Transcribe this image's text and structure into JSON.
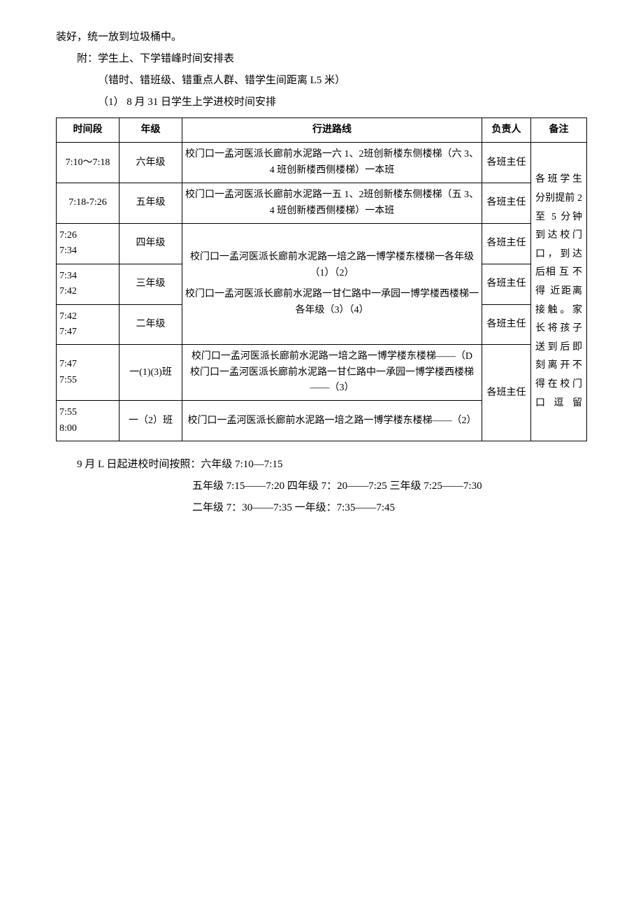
{
  "intro": {
    "line1": "装好，统一放到垃圾桶中。",
    "line2": "附：学生上、下学错峰时间安排表",
    "line3": "（错时、错班级、错重点人群、错学生间距离 L5 米）",
    "line4": "（1）  8 月 31 日学生上学进校时间安排"
  },
  "table": {
    "headers": {
      "time": "时间段",
      "grade": "年级",
      "route": "行进路线",
      "resp": "负责人",
      "note": "备注"
    },
    "rows": [
      {
        "time": "7:10～7:18",
        "grade": "六年级",
        "route": "校门口一孟河医派长廊前水泥路一六 1、2班创新楼东侧楼梯（六 3、4 班创新楼西侧楼梯）一本班",
        "resp": "各班主任"
      },
      {
        "time": "7:18-7:26",
        "grade": "五年级",
        "route": "校门口一孟河医派长廊前水泥路一五 1、2班创新楼东侧楼梯（五 3、4 班创新楼西侧楼梯）一本班",
        "resp": "各班主任"
      },
      {
        "time": "7:26\n7:34",
        "grade": "四年级",
        "route_merged_top": "校门口一孟河医派长廊前水泥路一培之路一博学楼东楼梯一各年级（1）（2）",
        "resp": "各班主任"
      },
      {
        "time": "7:34\n7:42",
        "grade": "三年级",
        "route_merged_mid": "校门口一孟河医派长廊前水泥路一甘仁路中一承园一博学楼西楼梯一各年级（3）（4）",
        "resp": "各班主任"
      },
      {
        "time": "7:42\n7:47",
        "grade": "二年级",
        "resp": "各班主任"
      },
      {
        "time": "7:47\n7:55",
        "grade": "一(1)(3)班",
        "route": "校门口一孟河医派长廊前水泥路一培之路一博学楼东楼梯——（D\n校门口一孟河医派长廊前水泥路一甘仁路中一承园一博学楼西楼梯——（3）",
        "resp_merged": "各班主任"
      },
      {
        "time": "7:55\n8:00",
        "grade": "一（2）班",
        "route": "校门口一孟河医派长廊前水泥路一培之路一博学楼东楼梯——（2）"
      }
    ],
    "note": "各班学生分别提前 2至 5 分钟到达校门口，到达后相 互 不 得 近距离接触。家长将孩子送到后即刻离开不得在校门口逗留"
  },
  "footer": {
    "line1": "9 月 L 日起进校时间按照：六年级 7:10—7:15",
    "line2": "五年级 7:15——7:20 四年级 7：20——7:25 三年级 7:25——7:30",
    "line3": "二年级 7：30——7:35 一年级：7:35——7:45"
  }
}
